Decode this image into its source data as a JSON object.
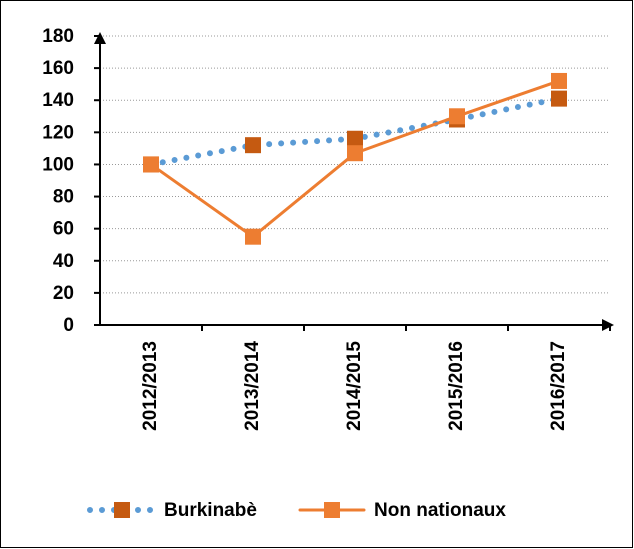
{
  "chart_data": {
    "type": "line",
    "categories": [
      "2012/2013",
      "2013/2014",
      "2014/2015",
      "2015/2016",
      "2016/2017"
    ],
    "series": [
      {
        "name": "Burkinabè",
        "color": "#5b9bd5",
        "marker_color": "#c55a11",
        "line_style": "dotted",
        "values": [
          100,
          112,
          116,
          128,
          141
        ]
      },
      {
        "name": "Non nationaux",
        "color": "#ed7d31",
        "marker_color": "#ed7d31",
        "line_style": "solid",
        "values": [
          100,
          55,
          107,
          130,
          152
        ]
      }
    ],
    "ylim": [
      0,
      180
    ],
    "yticks": [
      0,
      20,
      40,
      60,
      80,
      100,
      120,
      140,
      160,
      180
    ],
    "grid": true,
    "legend": "bottom"
  }
}
